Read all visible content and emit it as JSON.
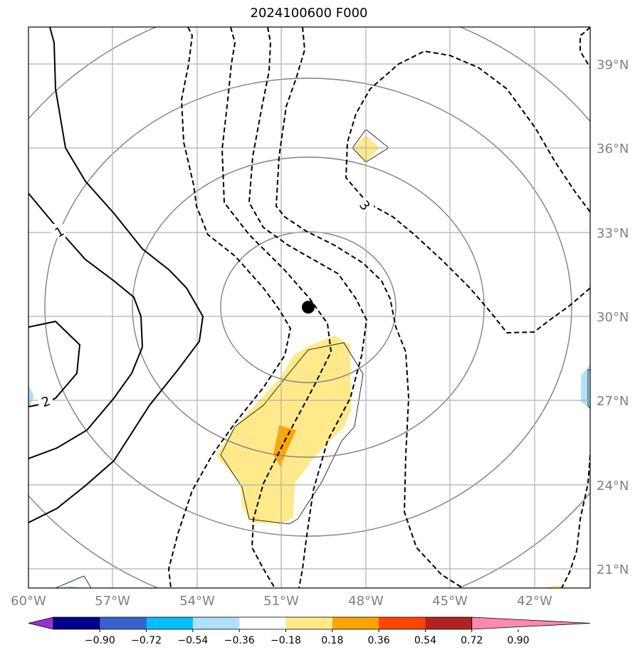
{
  "map": {
    "title": "2024100600 F000",
    "lon_ticks": [
      "60°W",
      "57°W",
      "54°W",
      "51°W",
      "48°W",
      "45°W",
      "42°W"
    ],
    "lat_ticks": [
      "39°N",
      "36°N",
      "33°N",
      "30°N",
      "27°N",
      "24°N",
      "21°N"
    ],
    "contour_labels": [
      "1",
      "2",
      "3"
    ],
    "center_marker": "storm-center-dot"
  },
  "colorbar": {
    "ticks": [
      "−0.90",
      "−0.72",
      "−0.54",
      "−0.36",
      "−0.18",
      "0.18",
      "0.36",
      "0.54",
      "0.72",
      "0.90"
    ],
    "colors": [
      "#9932cc",
      "#00008b",
      "#3b5fcd",
      "#00bfff",
      "#b0e0fa",
      "#ffffff",
      "#ffe98b",
      "#ffa500",
      "#ff4500",
      "#b22222",
      "#ff88b3"
    ]
  }
}
